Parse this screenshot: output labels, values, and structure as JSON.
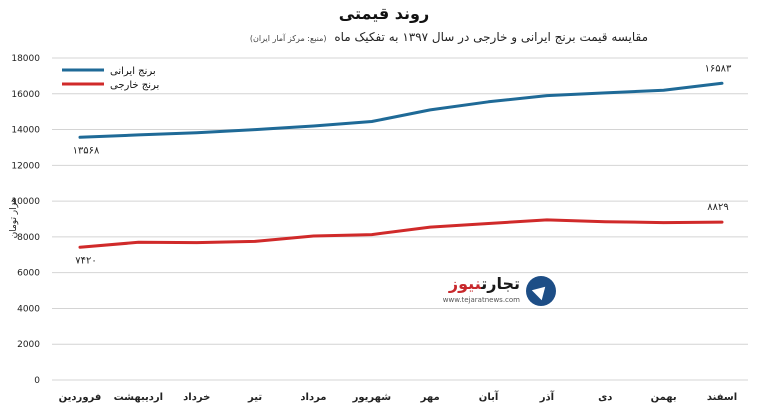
{
  "chart_data": {
    "type": "line",
    "title": "روند قیمتی",
    "subtitle": "مقایسه قیمت برنج ایرانی و خارجی در سال ۱۳۹۷ به تفکیک ماه",
    "source": "(منبع: مرکز آمار ایران)",
    "ylabel": "هزار تومان",
    "xlabel": "",
    "ylim": [
      0,
      18000
    ],
    "y_ticks": [
      0,
      2000,
      4000,
      6000,
      8000,
      10000,
      12000,
      14000,
      16000,
      18000
    ],
    "y_tick_labels": [
      "0",
      "2000",
      "4000",
      "6000",
      "8000",
      "10000",
      "12000",
      "14000",
      "16000",
      "18000"
    ],
    "categories": [
      "فروردین",
      "اردیبهشت",
      "خرداد",
      "تیر",
      "مرداد",
      "شهریور",
      "مهر",
      "آبان",
      "آذر",
      "دی",
      "بهمن",
      "اسفند"
    ],
    "series": [
      {
        "name": "برنج ایرانی",
        "color": "#1f6a97",
        "values": [
          13568,
          13700,
          13820,
          14000,
          14200,
          14450,
          15100,
          15550,
          15900,
          16050,
          16200,
          16583
        ]
      },
      {
        "name": "برنج خارجی",
        "color": "#d02a2a",
        "values": [
          7420,
          7700,
          7680,
          7750,
          8050,
          8130,
          8550,
          8750,
          8950,
          8850,
          8800,
          8829
        ]
      }
    ],
    "annotations": [
      {
        "series": 0,
        "index": 0,
        "text": "۱۳۵۶۸"
      },
      {
        "series": 0,
        "index": 11,
        "text": "۱۶۵۸۳"
      },
      {
        "series": 1,
        "index": 0,
        "text": "۷۴۲۰"
      },
      {
        "series": 1,
        "index": 11,
        "text": "۸۸۲۹"
      }
    ],
    "grid": true,
    "legend_position": "top-left"
  },
  "watermark": {
    "name_part1": "تجارت",
    "name_part2": "نیوز",
    "url": "www.tejaratnews.com",
    "icon": "tejarat-arrow-icon"
  }
}
